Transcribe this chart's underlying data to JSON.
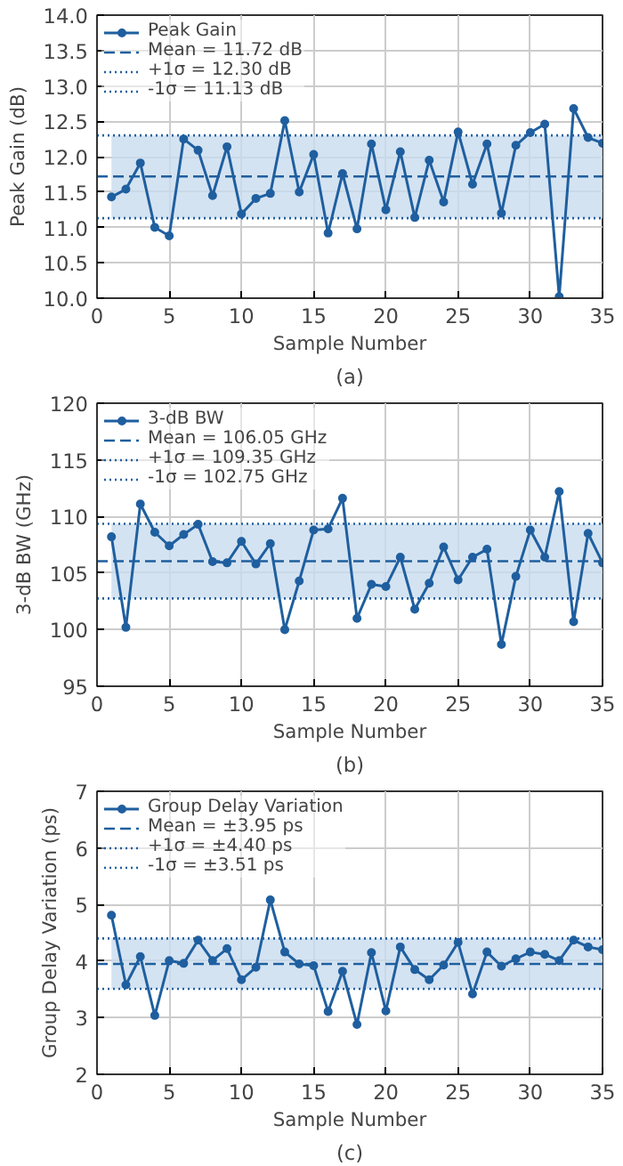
{
  "chart_data": [
    {
      "type": "line",
      "xlabel": "Sample Number",
      "ylabel": "Peak Gain (dB)",
      "annotations": [
        "(a)"
      ],
      "x": [
        1,
        2,
        3,
        4,
        5,
        6,
        7,
        8,
        9,
        10,
        11,
        12,
        13,
        14,
        15,
        16,
        17,
        18,
        19,
        20,
        21,
        22,
        23,
        24,
        25,
        26,
        27,
        28,
        29,
        30,
        31,
        32,
        33,
        34,
        35
      ],
      "series": [
        {
          "name": "Peak Gain",
          "color": "#1f5f9f",
          "values": [
            11.43,
            11.54,
            11.91,
            11.0,
            10.88,
            12.25,
            12.09,
            11.45,
            12.14,
            11.19,
            11.41,
            11.48,
            12.51,
            11.5,
            12.03,
            10.92,
            11.76,
            10.98,
            12.18,
            11.25,
            12.07,
            11.14,
            11.95,
            11.36,
            12.35,
            11.61,
            12.18,
            11.2,
            12.16,
            12.34,
            12.46,
            10.02,
            12.68,
            12.27,
            12.19
          ]
        }
      ],
      "ref_lines": [
        {
          "axis": "y",
          "value": 11.72,
          "label": "Mean = 11.72 dB",
          "color": "#1f5f9f",
          "line_style": "dashed"
        },
        {
          "axis": "y",
          "value": 12.3,
          "label": "+1σ = 12.30 dB",
          "color": "#1f5f9f",
          "line_style": "dotted"
        },
        {
          "axis": "y",
          "value": 11.13,
          "label": "-1σ = 11.13 dB",
          "color": "#1f5f9f",
          "line_style": "dotted"
        }
      ],
      "bands": [
        {
          "axis": "y",
          "from": 11.13,
          "to": 12.3,
          "color": "#c9dcef"
        }
      ],
      "xlim": [
        0,
        35
      ],
      "xticks": [
        0,
        5,
        10,
        15,
        20,
        25,
        30,
        35
      ],
      "ylim": [
        10,
        14
      ],
      "yticks": [
        {
          "value": 10,
          "label": "10.0"
        },
        {
          "value": 10.5,
          "label": "10.5"
        },
        {
          "value": 11,
          "label": "11.0"
        },
        {
          "value": 11.5,
          "label": "11.5"
        },
        {
          "value": 12,
          "label": "12.0"
        },
        {
          "value": 12.5,
          "label": "12.5"
        },
        {
          "value": 13,
          "label": "13.0"
        },
        {
          "value": 13.5,
          "label": "13.5"
        },
        {
          "value": 14,
          "label": "14.0"
        }
      ],
      "grid": true,
      "legend": "top left",
      "marker": "circle",
      "line_style": "solid"
    },
    {
      "type": "line",
      "xlabel": "Sample Number",
      "ylabel": "3-dB BW (GHz)",
      "annotations": [
        "(b)"
      ],
      "x": [
        1,
        2,
        3,
        4,
        5,
        6,
        7,
        8,
        9,
        10,
        11,
        12,
        13,
        14,
        15,
        16,
        17,
        18,
        19,
        20,
        21,
        22,
        23,
        24,
        25,
        26,
        27,
        28,
        29,
        30,
        31,
        32,
        33,
        34,
        35
      ],
      "series": [
        {
          "name": "3-dB BW",
          "color": "#1f5f9f",
          "values": [
            108.2,
            100.2,
            111.1,
            108.6,
            107.4,
            108.4,
            109.3,
            106.0,
            105.9,
            107.8,
            105.8,
            107.6,
            100.0,
            104.3,
            108.8,
            108.9,
            111.6,
            101.0,
            104.0,
            103.8,
            106.4,
            101.8,
            104.1,
            107.3,
            104.4,
            106.4,
            107.1,
            98.7,
            104.7,
            108.8,
            106.4,
            112.2,
            100.7,
            108.5,
            105.9
          ]
        }
      ],
      "ref_lines": [
        {
          "axis": "y",
          "value": 106.05,
          "label": "Mean = 106.05 GHz",
          "color": "#1f5f9f",
          "line_style": "dashed"
        },
        {
          "axis": "y",
          "value": 109.35,
          "label": "+1σ = 109.35 GHz",
          "color": "#1f5f9f",
          "line_style": "dotted"
        },
        {
          "axis": "y",
          "value": 102.75,
          "label": "-1σ = 102.75 GHz",
          "color": "#1f5f9f",
          "line_style": "dotted"
        }
      ],
      "bands": [
        {
          "axis": "y",
          "from": 102.75,
          "to": 109.35,
          "color": "#c9dcef"
        }
      ],
      "xlim": [
        0,
        35
      ],
      "xticks": [
        0,
        5,
        10,
        15,
        20,
        25,
        30,
        35
      ],
      "ylim": [
        95,
        120
      ],
      "yticks": [
        95,
        100,
        105,
        110,
        115,
        120
      ],
      "grid": true,
      "legend": "top left",
      "marker": "circle",
      "line_style": "solid"
    },
    {
      "type": "line",
      "xlabel": "Sample Number",
      "ylabel": "Group Delay Variation (ps)",
      "annotations": [
        "(c)"
      ],
      "x": [
        1,
        2,
        3,
        4,
        5,
        6,
        7,
        8,
        9,
        10,
        11,
        12,
        13,
        14,
        15,
        16,
        17,
        18,
        19,
        20,
        21,
        22,
        23,
        24,
        25,
        26,
        27,
        28,
        29,
        30,
        31,
        32,
        33,
        34,
        35
      ],
      "series": [
        {
          "name": "Group Delay Variation",
          "color": "#1f5f9f",
          "values": [
            4.81,
            3.58,
            4.08,
            3.04,
            4.01,
            3.96,
            4.37,
            4.01,
            4.22,
            3.67,
            3.89,
            5.08,
            4.16,
            3.95,
            3.92,
            3.11,
            3.82,
            2.88,
            4.15,
            3.12,
            4.25,
            3.85,
            3.67,
            3.93,
            4.33,
            3.42,
            4.16,
            3.91,
            4.04,
            4.16,
            4.12,
            4.01,
            4.37,
            4.25,
            4.2
          ]
        }
      ],
      "ref_lines": [
        {
          "axis": "y",
          "value": 3.95,
          "label": "Mean = ±3.95 ps",
          "color": "#1f5f9f",
          "line_style": "dashed"
        },
        {
          "axis": "y",
          "value": 4.4,
          "label": "+1σ = ±4.40 ps",
          "color": "#1f5f9f",
          "line_style": "dotted"
        },
        {
          "axis": "y",
          "value": 3.51,
          "label": "-1σ = ±3.51 ps",
          "color": "#1f5f9f",
          "line_style": "dotted"
        }
      ],
      "bands": [
        {
          "axis": "y",
          "from": 3.51,
          "to": 4.4,
          "color": "#c9dcef"
        }
      ],
      "xlim": [
        0,
        35
      ],
      "xticks": [
        0,
        5,
        10,
        15,
        20,
        25,
        30,
        35
      ],
      "ylim": [
        2,
        7
      ],
      "yticks": [
        2,
        3,
        4,
        5,
        6,
        7
      ],
      "grid": true,
      "legend": "top left",
      "marker": "circle",
      "line_style": "solid"
    }
  ]
}
